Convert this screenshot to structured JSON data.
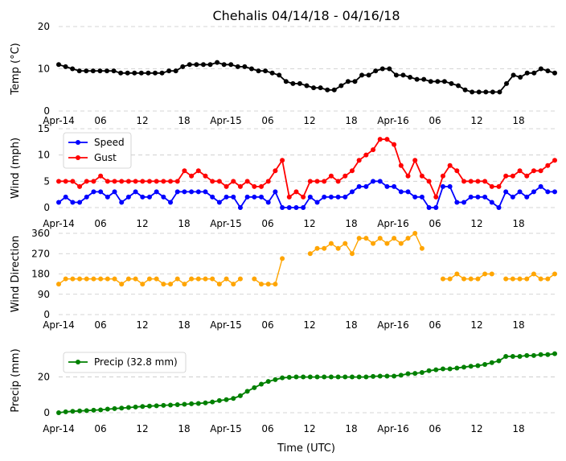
{
  "title": "Chehalis 04/14/18 - 04/16/18",
  "xlabel": "Time (UTC)",
  "x_tick_labels": [
    "Apr-14",
    "06",
    "12",
    "18",
    "Apr-15",
    "06",
    "12",
    "18",
    "Apr-16",
    "06",
    "12",
    "18"
  ],
  "chart_data": [
    {
      "type": "line",
      "name": "temperature",
      "ylabel": "Temp (°C)",
      "ylim": [
        0,
        20
      ],
      "yticks": [
        0,
        10,
        20
      ],
      "grid": true,
      "legend": null,
      "series": [
        {
          "color": "#000000",
          "values": [
            11.0,
            10.5,
            10.0,
            9.5,
            9.5,
            9.5,
            9.5,
            9.5,
            9.5,
            9.0,
            9.0,
            9.0,
            9.0,
            9.0,
            9.0,
            9.0,
            9.5,
            9.5,
            10.5,
            11.0,
            11.0,
            11.0,
            11.0,
            11.5,
            11.0,
            11.0,
            10.5,
            10.5,
            10.0,
            9.5,
            9.5,
            9.0,
            8.5,
            7.0,
            6.5,
            6.5,
            6.0,
            5.5,
            5.5,
            5.0,
            5.0,
            6.0,
            7.0,
            7.0,
            8.5,
            8.5,
            9.5,
            10.0,
            10.0,
            8.5,
            8.5,
            8.0,
            7.5,
            7.5,
            7.0,
            7.0,
            7.0,
            6.5,
            6.0,
            5.0,
            4.5,
            4.5,
            4.5,
            4.5,
            4.5,
            6.5,
            8.5,
            8.0,
            9.0,
            9.0,
            10.0,
            9.5,
            9.0
          ]
        }
      ]
    },
    {
      "type": "line",
      "name": "wind",
      "ylabel": "Wind (mph)",
      "ylim": [
        0,
        15
      ],
      "yticks": [
        0,
        5,
        10,
        15
      ],
      "grid": true,
      "legend": "upper-left",
      "series": [
        {
          "name": "Speed",
          "color": "#0000ff",
          "values": [
            1,
            2,
            1,
            1,
            2,
            3,
            3,
            2,
            3,
            1,
            2,
            3,
            2,
            2,
            3,
            2,
            1,
            3,
            3,
            3,
            3,
            3,
            2,
            1,
            2,
            2,
            0,
            2,
            2,
            2,
            1,
            3,
            0,
            0,
            0,
            0,
            2,
            1,
            2,
            2,
            2,
            2,
            3,
            4,
            4,
            5,
            5,
            4,
            4,
            3,
            3,
            2,
            2,
            0,
            0,
            4,
            4,
            1,
            1,
            2,
            2,
            2,
            1,
            0,
            3,
            2,
            3,
            2,
            3,
            4,
            3,
            3
          ]
        },
        {
          "name": "Gust",
          "color": "#ff0000",
          "values": [
            5,
            5,
            5,
            4,
            5,
            5,
            6,
            5,
            5,
            5,
            5,
            5,
            5,
            5,
            5,
            5,
            5,
            5,
            7,
            6,
            7,
            6,
            5,
            5,
            4,
            5,
            4,
            5,
            4,
            4,
            5,
            7,
            9,
            2,
            3,
            2,
            5,
            5,
            5,
            6,
            5,
            6,
            7,
            9,
            10,
            11,
            13,
            13,
            12,
            8,
            6,
            9,
            6,
            5,
            2,
            6,
            8,
            7,
            5,
            5,
            5,
            5,
            4,
            4,
            6,
            6,
            7,
            6,
            7,
            7,
            8,
            9
          ]
        }
      ]
    },
    {
      "type": "scatter",
      "name": "wind-direction",
      "ylabel": "Wind Direction",
      "ylim": [
        0,
        360
      ],
      "yticks": [
        0,
        90,
        180,
        270,
        360
      ],
      "grid": true,
      "legend": null,
      "series": [
        {
          "color": "#ffa500",
          "values": [
            135,
            158,
            158,
            158,
            158,
            158,
            158,
            158,
            158,
            135,
            158,
            158,
            135,
            158,
            158,
            135,
            135,
            158,
            135,
            158,
            158,
            158,
            158,
            135,
            158,
            135,
            158,
            null,
            158,
            135,
            135,
            135,
            248,
            null,
            null,
            null,
            270,
            293,
            293,
            315,
            293,
            315,
            270,
            338,
            338,
            315,
            338,
            315,
            338,
            315,
            338,
            360,
            293,
            null,
            null,
            158,
            158,
            180,
            158,
            158,
            158,
            180,
            180,
            null,
            158,
            158,
            158,
            158,
            180,
            158,
            158,
            180
          ]
        }
      ]
    },
    {
      "type": "line",
      "name": "precipitation",
      "ylabel": "Precip (mm)",
      "ylim": [
        0,
        36
      ],
      "yticks": [
        0,
        20
      ],
      "grid": true,
      "legend": "upper-left",
      "series": [
        {
          "name": "Precip (32.8 mm)",
          "color": "#008000",
          "values": [
            0,
            0.5,
            0.8,
            1,
            1.2,
            1.4,
            1.6,
            2,
            2.3,
            2.6,
            2.9,
            3.2,
            3.5,
            3.7,
            3.9,
            4.1,
            4.3,
            4.5,
            4.7,
            5,
            5.2,
            5.5,
            6,
            6.8,
            7.3,
            8,
            9.5,
            12,
            14,
            16,
            17.5,
            18.5,
            19.5,
            19.8,
            20,
            20,
            20,
            20,
            20,
            20,
            20,
            20,
            20,
            20,
            20,
            20.3,
            20.5,
            20.5,
            20.5,
            21,
            21.8,
            22,
            22.5,
            23.5,
            24,
            24.5,
            24.5,
            25,
            25.5,
            26,
            26.3,
            27,
            28,
            29,
            31.5,
            31.5,
            31.5,
            32,
            32,
            32.5,
            32.5,
            33
          ]
        }
      ]
    }
  ]
}
